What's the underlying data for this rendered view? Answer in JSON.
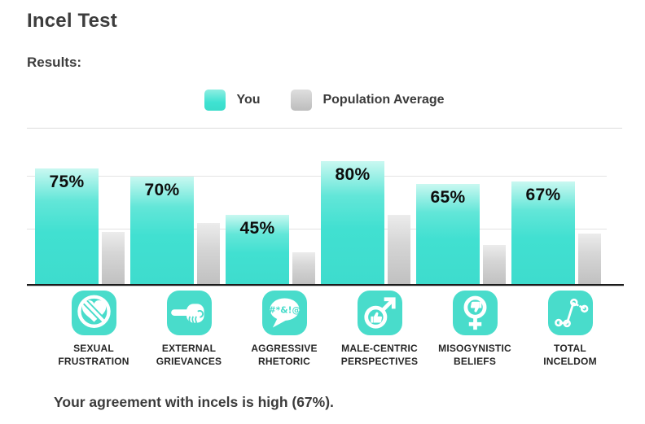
{
  "page": {
    "title": "Incel Test",
    "results_label": "Results:",
    "summary": "Your agreement with incels is high (67%)."
  },
  "legend": {
    "items": [
      {
        "label": "You",
        "color": "#3fe0d0"
      },
      {
        "label": "Population Average",
        "color": "#c3c3c3"
      }
    ],
    "position": "top-center"
  },
  "chart_data": {
    "type": "bar",
    "categories": [
      "Sexual Frustration",
      "External Grievances",
      "Aggressive Rhetoric",
      "Male-Centric Perspectives",
      "Misogynistic Beliefs",
      "Total Inceldom"
    ],
    "series": [
      {
        "name": "You",
        "values": [
          75,
          70,
          45,
          80,
          65,
          67
        ]
      },
      {
        "name": "Population Average",
        "values": [
          34,
          40,
          21,
          45,
          26,
          33
        ]
      }
    ],
    "value_labels": [
      "75%",
      "70%",
      "45%",
      "80%",
      "65%",
      "67%"
    ],
    "ylim": [
      0,
      100
    ],
    "grid": "horizontal-light",
    "legend_position": "top-center",
    "you_bar_color": "#3fe0d0",
    "population_bar_color": "#c3c3c3"
  },
  "groups": [
    {
      "lines": [
        "SEXUAL",
        "FRUSTRATION"
      ],
      "icon": "blocked-heart-icon"
    },
    {
      "lines": [
        "EXTERNAL",
        "GRIEVANCES"
      ],
      "icon": "pointing-hand-icon"
    },
    {
      "lines": [
        "AGGRESSIVE",
        "RHETORIC"
      ],
      "icon": "profanity-speech-bubble-icon"
    },
    {
      "lines": [
        "MALE-CENTRIC",
        "PERSPECTIVES"
      ],
      "icon": "male-symbol-thumbs-up-icon"
    },
    {
      "lines": [
        "MISOGYNISTIC",
        "BELIEFS"
      ],
      "icon": "female-symbol-thumbs-down-icon"
    },
    {
      "lines": [
        "TOTAL",
        "INCELDOM"
      ],
      "icon": "trend-line-icon"
    }
  ],
  "icons": {
    "profanity_text": "#*&!@",
    "icon_background_color": "#49dccb"
  }
}
